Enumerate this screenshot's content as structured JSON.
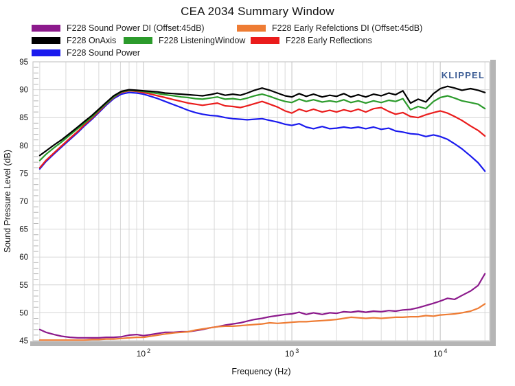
{
  "chart_data": {
    "type": "line",
    "title": "CEA 2034 Summary Window",
    "watermark": "KLIPPEL",
    "watermark_color": "#3c5c94",
    "xlabel": "Frequency (Hz)",
    "ylabel": "Sound Pressure Level (dB)",
    "xscale": "log",
    "xlim": [
      18,
      21500
    ],
    "ylim": [
      45,
      95
    ],
    "y_tick_step": 5,
    "y_minor_tick_step": 1,
    "x_decade_ticks": [
      {
        "value": 100,
        "base": "10",
        "exp": "2"
      },
      {
        "value": 1000,
        "base": "10",
        "exp": "3"
      },
      {
        "value": 10000,
        "base": "10",
        "exp": "4"
      }
    ],
    "grid": true,
    "legend_position": "top",
    "x": [
      20,
      22,
      25,
      28,
      32,
      36,
      40,
      45,
      50,
      56,
      63,
      71,
      80,
      90,
      100,
      112,
      125,
      140,
      160,
      180,
      200,
      224,
      250,
      280,
      315,
      355,
      400,
      450,
      500,
      560,
      630,
      710,
      800,
      900,
      1000,
      1120,
      1250,
      1400,
      1600,
      1800,
      2000,
      2240,
      2500,
      2800,
      3150,
      3550,
      4000,
      4500,
      5000,
      5600,
      6300,
      7100,
      8000,
      9000,
      10000,
      11200,
      12500,
      14000,
      16000,
      18000,
      20000
    ],
    "series": [
      {
        "name": "F228 Sound Power DI (Offset:45dB)",
        "color": "#8c1a8c",
        "values": [
          47.0,
          46.5,
          46.1,
          45.8,
          45.6,
          45.5,
          45.5,
          45.5,
          45.5,
          45.6,
          45.6,
          45.7,
          46.0,
          46.1,
          45.9,
          46.1,
          46.3,
          46.5,
          46.5,
          46.6,
          46.6,
          46.8,
          47.0,
          47.3,
          47.5,
          47.8,
          48.0,
          48.2,
          48.5,
          48.8,
          49.0,
          49.3,
          49.5,
          49.7,
          49.8,
          50.1,
          49.7,
          50.0,
          49.7,
          50.0,
          49.9,
          50.2,
          50.1,
          50.3,
          50.1,
          50.3,
          50.2,
          50.4,
          50.3,
          50.5,
          50.6,
          50.9,
          51.3,
          51.7,
          52.1,
          52.6,
          52.4,
          53.1,
          53.9,
          54.9,
          57.0
        ]
      },
      {
        "name": "F228 Early Refelctions DI (Offset:45dB)",
        "color": "#ee7c34",
        "values": [
          45.1,
          45.1,
          45.1,
          45.1,
          45.1,
          45.1,
          45.1,
          45.2,
          45.2,
          45.3,
          45.3,
          45.4,
          45.5,
          45.6,
          45.6,
          45.8,
          46.0,
          46.2,
          46.4,
          46.5,
          46.6,
          46.9,
          47.1,
          47.3,
          47.5,
          47.6,
          47.6,
          47.7,
          47.8,
          47.9,
          48.0,
          48.2,
          48.1,
          48.2,
          48.3,
          48.4,
          48.4,
          48.5,
          48.6,
          48.7,
          48.8,
          49.0,
          49.2,
          49.1,
          49.0,
          49.1,
          49.0,
          49.1,
          49.2,
          49.2,
          49.3,
          49.3,
          49.5,
          49.4,
          49.6,
          49.7,
          49.8,
          50.0,
          50.3,
          50.8,
          51.6
        ]
      },
      {
        "name": "F228 OnAxis",
        "color": "#000000",
        "values": [
          78.2,
          79.0,
          80.1,
          81.0,
          82.2,
          83.3,
          84.3,
          85.4,
          86.5,
          87.7,
          88.9,
          89.7,
          90.0,
          89.9,
          89.8,
          89.7,
          89.6,
          89.4,
          89.3,
          89.2,
          89.1,
          89.0,
          88.9,
          89.1,
          89.4,
          89.0,
          89.2,
          89.0,
          89.4,
          89.9,
          90.3,
          89.9,
          89.4,
          88.9,
          88.7,
          89.3,
          88.8,
          89.2,
          88.7,
          89.0,
          88.8,
          89.3,
          88.7,
          89.1,
          88.7,
          89.2,
          88.9,
          89.4,
          89.1,
          89.8,
          87.6,
          88.3,
          87.8,
          89.3,
          90.2,
          90.6,
          90.3,
          89.9,
          90.2,
          89.9,
          89.5
        ]
      },
      {
        "name": "F228 ListeningWindow",
        "color": "#2c9b2c",
        "values": [
          77.3,
          78.4,
          79.6,
          80.6,
          81.9,
          83.0,
          84.0,
          85.1,
          86.3,
          87.5,
          88.7,
          89.6,
          89.9,
          89.8,
          89.7,
          89.5,
          89.3,
          89.1,
          88.9,
          88.7,
          88.6,
          88.4,
          88.3,
          88.5,
          88.7,
          88.3,
          88.4,
          88.2,
          88.5,
          88.9,
          89.2,
          88.8,
          88.3,
          87.9,
          87.7,
          88.3,
          87.9,
          88.2,
          87.8,
          88.0,
          87.8,
          88.2,
          87.7,
          88.0,
          87.6,
          88.0,
          87.7,
          88.1,
          87.9,
          88.4,
          86.4,
          87.0,
          86.6,
          87.9,
          88.6,
          88.9,
          88.5,
          88.0,
          87.7,
          87.4,
          86.6
        ]
      },
      {
        "name": "F228 Early Reflections",
        "color": "#ea1c1c",
        "values": [
          76.0,
          77.3,
          78.7,
          79.9,
          81.3,
          82.5,
          83.7,
          84.9,
          86.1,
          87.4,
          88.6,
          89.5,
          89.8,
          89.7,
          89.5,
          89.2,
          88.9,
          88.6,
          88.2,
          87.9,
          87.6,
          87.4,
          87.2,
          87.4,
          87.6,
          87.1,
          87.0,
          86.8,
          87.1,
          87.5,
          87.9,
          87.4,
          86.9,
          86.2,
          85.8,
          86.5,
          86.1,
          86.5,
          86.0,
          86.3,
          86.0,
          86.4,
          86.1,
          86.5,
          86.0,
          86.6,
          86.8,
          86.1,
          85.6,
          85.9,
          85.2,
          85.0,
          85.5,
          85.9,
          86.2,
          85.8,
          85.2,
          84.5,
          83.5,
          82.7,
          81.7
        ]
      },
      {
        "name": "F228 Sound Power",
        "color": "#1a1aee",
        "values": [
          75.8,
          77.1,
          78.5,
          79.7,
          81.1,
          82.3,
          83.5,
          84.7,
          85.9,
          87.2,
          88.4,
          89.2,
          89.5,
          89.4,
          89.2,
          88.8,
          88.4,
          87.9,
          87.3,
          86.8,
          86.3,
          85.9,
          85.6,
          85.4,
          85.3,
          85.0,
          84.8,
          84.7,
          84.6,
          84.7,
          84.8,
          84.5,
          84.2,
          83.8,
          83.6,
          83.9,
          83.3,
          83.0,
          83.4,
          83.0,
          83.1,
          83.3,
          83.1,
          83.3,
          83.0,
          83.3,
          82.9,
          83.1,
          82.6,
          82.4,
          82.1,
          82.0,
          81.6,
          81.9,
          81.6,
          81.1,
          80.3,
          79.4,
          78.1,
          76.9,
          75.4
        ]
      }
    ]
  }
}
